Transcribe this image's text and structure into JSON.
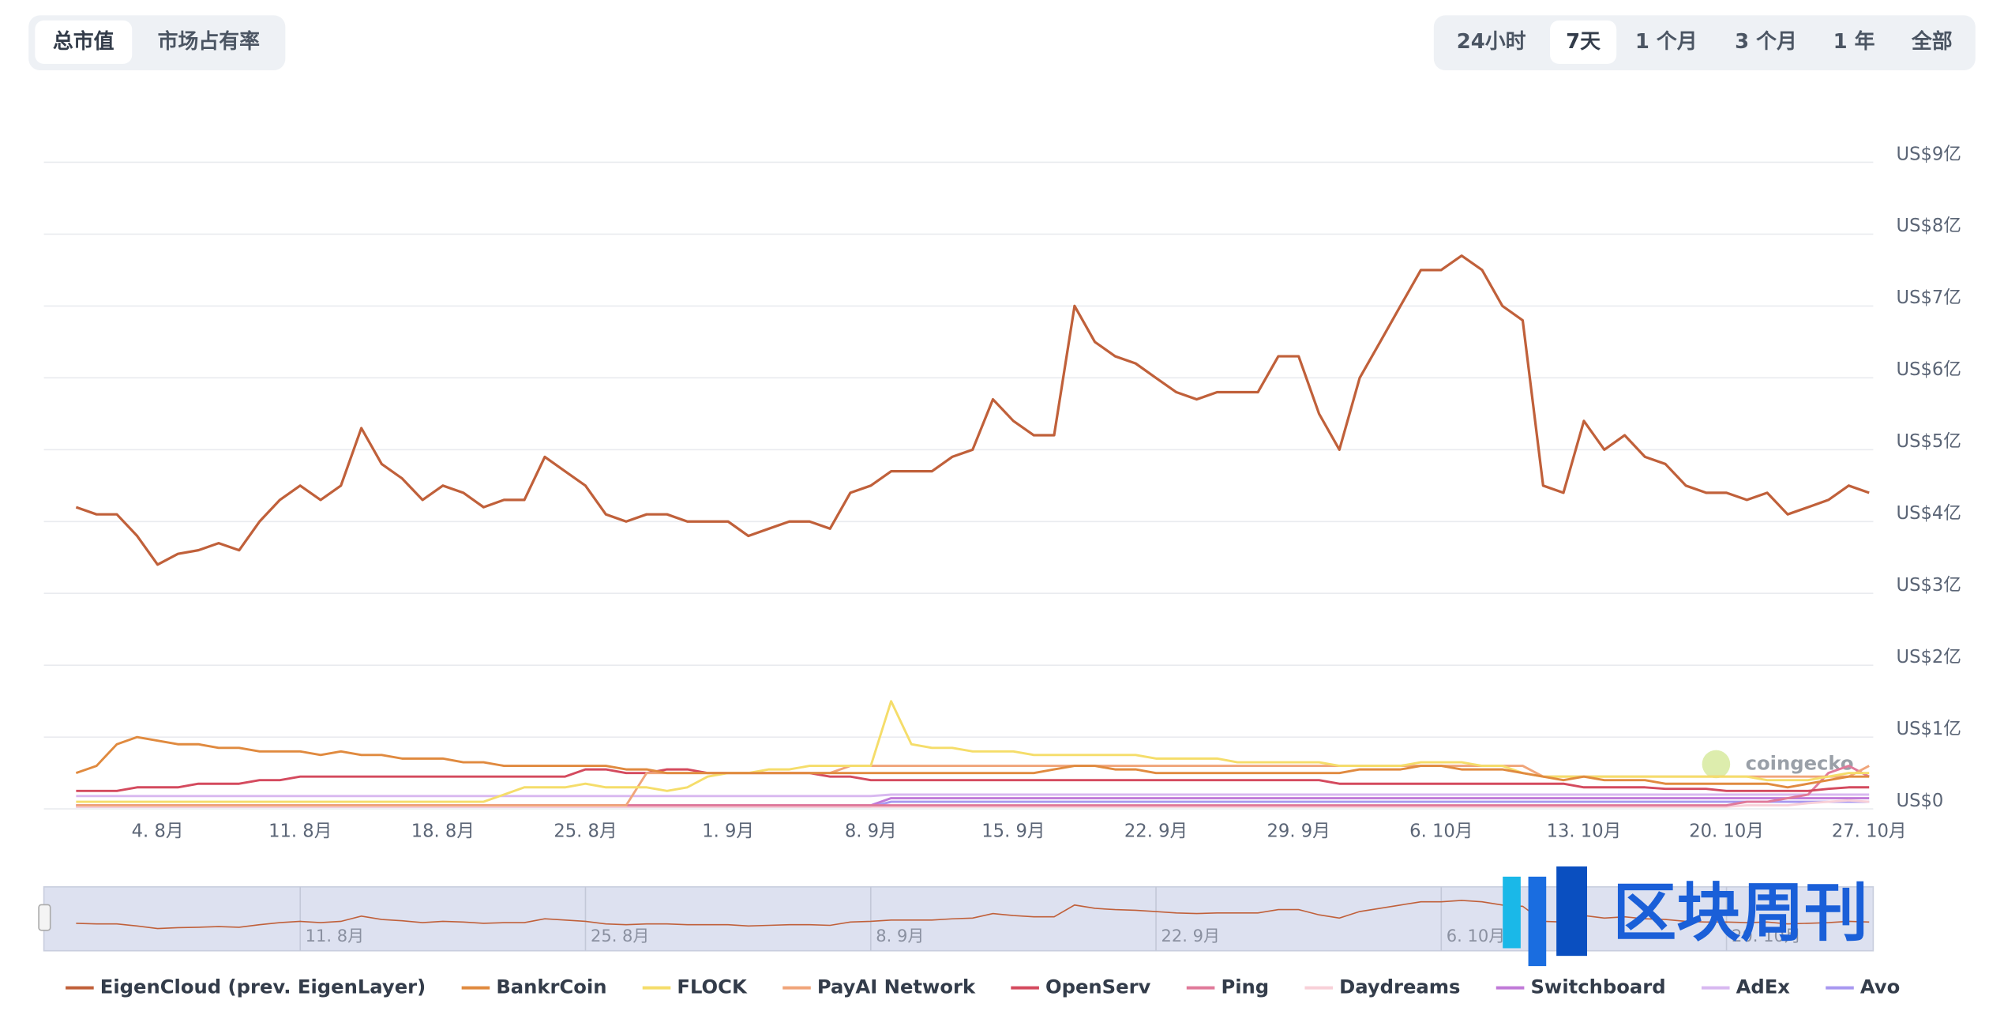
{
  "controls": {
    "metric_tabs": [
      "总市值",
      "市场占有率"
    ],
    "range_tabs": [
      "24小时",
      "7天",
      "1 个月",
      "3 个月",
      "1 年",
      "全部"
    ]
  },
  "watermarks": [
    "coingecko",
    "区块周刊"
  ],
  "chart_data": {
    "type": "line",
    "grid": true,
    "legend": "bottom",
    "categories": [
      null,
      null,
      null,
      null,
      "4. 8月",
      null,
      null,
      null,
      null,
      null,
      null,
      "11. 8月",
      null,
      null,
      null,
      null,
      null,
      null,
      "18. 8月",
      null,
      null,
      null,
      null,
      null,
      null,
      "25. 8月",
      null,
      null,
      null,
      null,
      null,
      null,
      "1. 9月",
      null,
      null,
      null,
      null,
      null,
      null,
      "8. 9月",
      null,
      null,
      null,
      null,
      null,
      null,
      "15. 9月",
      null,
      null,
      null,
      null,
      null,
      null,
      "22. 9月",
      null,
      null,
      null,
      null,
      null,
      null,
      "29. 9月",
      null,
      null,
      null,
      null,
      null,
      null,
      "6. 10月",
      null,
      null,
      null,
      null,
      null,
      null,
      "13. 10月",
      null,
      null,
      null,
      null,
      null,
      null,
      "20. 10月",
      null,
      null,
      null,
      null,
      null,
      null,
      "27. 10月"
    ],
    "ylim": [
      0,
      9
    ],
    "yticks": [
      {
        "value": 0,
        "label": "US$0"
      },
      {
        "value": 1,
        "label": "US$1亿"
      },
      {
        "value": 2,
        "label": "US$2亿"
      },
      {
        "value": 3,
        "label": "US$3亿"
      },
      {
        "value": 4,
        "label": "US$4亿"
      },
      {
        "value": 5,
        "label": "US$5亿"
      },
      {
        "value": 6,
        "label": "US$6亿"
      },
      {
        "value": 7,
        "label": "US$7亿"
      },
      {
        "value": 8,
        "label": "US$8亿"
      },
      {
        "value": 9,
        "label": "US$9亿"
      }
    ],
    "series": [
      {
        "name": "EigenCloud (prev. EigenLayer)",
        "color": "#c0603a",
        "values": [
          4.2,
          4.1,
          4.1,
          3.8,
          3.4,
          3.55,
          3.6,
          3.7,
          3.6,
          4.0,
          4.3,
          4.5,
          4.3,
          4.5,
          5.3,
          4.8,
          4.6,
          4.3,
          4.5,
          4.4,
          4.2,
          4.3,
          4.3,
          4.9,
          4.7,
          4.5,
          4.1,
          4.0,
          4.1,
          4.1,
          4.0,
          4.0,
          4.0,
          3.8,
          3.9,
          4.0,
          4.0,
          3.9,
          4.4,
          4.5,
          4.7,
          4.7,
          4.7,
          4.9,
          5.0,
          5.7,
          5.4,
          5.2,
          5.2,
          7.0,
          6.5,
          6.3,
          6.2,
          6.0,
          5.8,
          5.7,
          5.8,
          5.8,
          5.8,
          6.3,
          6.3,
          5.5,
          5.0,
          6.0,
          6.5,
          7.0,
          7.5,
          7.5,
          7.7,
          7.5,
          7.0,
          6.8,
          4.5,
          4.4,
          5.4,
          5.0,
          5.2,
          4.9,
          4.8,
          4.5,
          4.4,
          4.4,
          4.3,
          4.4,
          4.1,
          4.2,
          4.3,
          4.5,
          4.4
        ]
      },
      {
        "name": "BankrCoin",
        "color": "#e08a3f",
        "values": [
          0.5,
          0.6,
          0.9,
          1.0,
          0.95,
          0.9,
          0.9,
          0.85,
          0.85,
          0.8,
          0.8,
          0.8,
          0.75,
          0.8,
          0.75,
          0.75,
          0.7,
          0.7,
          0.7,
          0.65,
          0.65,
          0.6,
          0.6,
          0.6,
          0.6,
          0.6,
          0.6,
          0.55,
          0.55,
          0.5,
          0.5,
          0.5,
          0.5,
          0.5,
          0.5,
          0.5,
          0.5,
          0.5,
          0.5,
          0.5,
          0.5,
          0.5,
          0.5,
          0.5,
          0.5,
          0.5,
          0.5,
          0.5,
          0.55,
          0.6,
          0.6,
          0.55,
          0.55,
          0.5,
          0.5,
          0.5,
          0.5,
          0.5,
          0.5,
          0.5,
          0.5,
          0.5,
          0.5,
          0.55,
          0.55,
          0.55,
          0.6,
          0.6,
          0.55,
          0.55,
          0.55,
          0.5,
          0.45,
          0.4,
          0.45,
          0.4,
          0.4,
          0.4,
          0.35,
          0.35,
          0.35,
          0.35,
          0.35,
          0.35,
          0.3,
          0.35,
          0.4,
          0.45,
          0.45
        ]
      },
      {
        "name": "FLOCK",
        "color": "#f5dd6a",
        "values": [
          0.1,
          0.1,
          0.1,
          0.1,
          0.1,
          0.1,
          0.1,
          0.1,
          0.1,
          0.1,
          0.1,
          0.1,
          0.1,
          0.1,
          0.1,
          0.1,
          0.1,
          0.1,
          0.1,
          0.1,
          0.1,
          0.2,
          0.3,
          0.3,
          0.3,
          0.35,
          0.3,
          0.3,
          0.3,
          0.25,
          0.3,
          0.45,
          0.5,
          0.5,
          0.55,
          0.55,
          0.6,
          0.6,
          0.6,
          0.6,
          1.5,
          0.9,
          0.85,
          0.85,
          0.8,
          0.8,
          0.8,
          0.75,
          0.75,
          0.75,
          0.75,
          0.75,
          0.75,
          0.7,
          0.7,
          0.7,
          0.7,
          0.65,
          0.65,
          0.65,
          0.65,
          0.65,
          0.6,
          0.6,
          0.6,
          0.6,
          0.65,
          0.65,
          0.65,
          0.6,
          0.6,
          0.5,
          0.45,
          0.45,
          0.45,
          0.45,
          0.45,
          0.45,
          0.45,
          0.45,
          0.45,
          0.45,
          0.45,
          0.4,
          0.4,
          0.4,
          0.45,
          0.5,
          0.5
        ]
      },
      {
        "name": "PayAI Network",
        "color": "#f0a57a",
        "values": [
          0.05,
          0.05,
          0.05,
          0.05,
          0.05,
          0.05,
          0.05,
          0.05,
          0.05,
          0.05,
          0.05,
          0.05,
          0.05,
          0.05,
          0.05,
          0.05,
          0.05,
          0.05,
          0.05,
          0.05,
          0.05,
          0.05,
          0.05,
          0.05,
          0.05,
          0.05,
          0.05,
          0.05,
          0.5,
          0.5,
          0.5,
          0.5,
          0.5,
          0.5,
          0.5,
          0.5,
          0.5,
          0.5,
          0.6,
          0.6,
          0.6,
          0.6,
          0.6,
          0.6,
          0.6,
          0.6,
          0.6,
          0.6,
          0.6,
          0.6,
          0.6,
          0.6,
          0.6,
          0.6,
          0.6,
          0.6,
          0.6,
          0.6,
          0.6,
          0.6,
          0.6,
          0.6,
          0.6,
          0.6,
          0.6,
          0.6,
          0.6,
          0.6,
          0.6,
          0.6,
          0.6,
          0.6,
          0.45,
          0.45,
          0.45,
          0.45,
          0.45,
          0.45,
          0.45,
          0.45,
          0.45,
          0.45,
          0.45,
          0.45,
          0.45,
          0.45,
          0.45,
          0.45,
          0.6
        ]
      },
      {
        "name": "OpenServ",
        "color": "#d44a5e",
        "values": [
          0.25,
          0.25,
          0.25,
          0.3,
          0.3,
          0.3,
          0.35,
          0.35,
          0.35,
          0.4,
          0.4,
          0.45,
          0.45,
          0.45,
          0.45,
          0.45,
          0.45,
          0.45,
          0.45,
          0.45,
          0.45,
          0.45,
          0.45,
          0.45,
          0.45,
          0.55,
          0.55,
          0.5,
          0.5,
          0.55,
          0.55,
          0.5,
          0.5,
          0.5,
          0.5,
          0.5,
          0.5,
          0.45,
          0.45,
          0.4,
          0.4,
          0.4,
          0.4,
          0.4,
          0.4,
          0.4,
          0.4,
          0.4,
          0.4,
          0.4,
          0.4,
          0.4,
          0.4,
          0.4,
          0.4,
          0.4,
          0.4,
          0.4,
          0.4,
          0.4,
          0.4,
          0.4,
          0.35,
          0.35,
          0.35,
          0.35,
          0.35,
          0.35,
          0.35,
          0.35,
          0.35,
          0.35,
          0.35,
          0.35,
          0.3,
          0.3,
          0.3,
          0.3,
          0.28,
          0.28,
          0.28,
          0.25,
          0.25,
          0.25,
          0.25,
          0.25,
          0.28,
          0.3,
          0.3
        ]
      },
      {
        "name": "Ping",
        "color": "#e07a9a",
        "values": [
          0.05,
          0.05,
          0.05,
          0.05,
          0.05,
          0.05,
          0.05,
          0.05,
          0.05,
          0.05,
          0.05,
          0.05,
          0.05,
          0.05,
          0.05,
          0.05,
          0.05,
          0.05,
          0.05,
          0.05,
          0.05,
          0.05,
          0.05,
          0.05,
          0.05,
          0.05,
          0.05,
          0.05,
          0.05,
          0.05,
          0.05,
          0.05,
          0.05,
          0.05,
          0.05,
          0.05,
          0.05,
          0.05,
          0.05,
          0.05,
          0.05,
          0.05,
          0.05,
          0.05,
          0.05,
          0.05,
          0.05,
          0.05,
          0.05,
          0.05,
          0.05,
          0.05,
          0.05,
          0.05,
          0.05,
          0.05,
          0.05,
          0.05,
          0.05,
          0.05,
          0.05,
          0.05,
          0.05,
          0.05,
          0.05,
          0.05,
          0.05,
          0.05,
          0.05,
          0.05,
          0.05,
          0.05,
          0.05,
          0.05,
          0.05,
          0.05,
          0.05,
          0.05,
          0.05,
          0.05,
          0.05,
          0.05,
          0.1,
          0.1,
          0.15,
          0.2,
          0.5,
          0.6,
          0.45
        ]
      },
      {
        "name": "Daydreams",
        "color": "#f8d0d8",
        "values": [
          0.03,
          0.03,
          0.03,
          0.03,
          0.03,
          0.03,
          0.03,
          0.03,
          0.03,
          0.03,
          0.03,
          0.03,
          0.03,
          0.03,
          0.03,
          0.03,
          0.03,
          0.03,
          0.03,
          0.03,
          0.03,
          0.03,
          0.03,
          0.03,
          0.03,
          0.03,
          0.03,
          0.03,
          0.03,
          0.03,
          0.03,
          0.03,
          0.03,
          0.03,
          0.03,
          0.03,
          0.03,
          0.03,
          0.03,
          0.03,
          0.03,
          0.03,
          0.03,
          0.03,
          0.03,
          0.03,
          0.03,
          0.03,
          0.03,
          0.03,
          0.03,
          0.03,
          0.03,
          0.03,
          0.03,
          0.03,
          0.03,
          0.03,
          0.03,
          0.03,
          0.03,
          0.03,
          0.03,
          0.03,
          0.03,
          0.03,
          0.03,
          0.03,
          0.03,
          0.03,
          0.03,
          0.03,
          0.03,
          0.03,
          0.03,
          0.03,
          0.03,
          0.03,
          0.03,
          0.03,
          0.03,
          0.03,
          0.05,
          0.05,
          0.05,
          0.08,
          0.1,
          0.12,
          0.1
        ]
      },
      {
        "name": "Switchboard",
        "color": "#c07ad8",
        "values": [
          0.05,
          0.05,
          0.05,
          0.05,
          0.05,
          0.05,
          0.05,
          0.05,
          0.05,
          0.05,
          0.05,
          0.05,
          0.05,
          0.05,
          0.05,
          0.05,
          0.05,
          0.05,
          0.05,
          0.05,
          0.05,
          0.05,
          0.05,
          0.05,
          0.05,
          0.05,
          0.05,
          0.05,
          0.05,
          0.05,
          0.05,
          0.05,
          0.05,
          0.05,
          0.05,
          0.05,
          0.05,
          0.05,
          0.05,
          0.05,
          0.15,
          0.15,
          0.15,
          0.15,
          0.15,
          0.15,
          0.15,
          0.15,
          0.15,
          0.15,
          0.15,
          0.15,
          0.15,
          0.15,
          0.15,
          0.15,
          0.15,
          0.15,
          0.15,
          0.15,
          0.15,
          0.15,
          0.15,
          0.15,
          0.15,
          0.15,
          0.15,
          0.15,
          0.15,
          0.15,
          0.15,
          0.15,
          0.15,
          0.15,
          0.15,
          0.15,
          0.15,
          0.15,
          0.15,
          0.15,
          0.15,
          0.15,
          0.15,
          0.15,
          0.15,
          0.15,
          0.15,
          0.15,
          0.15
        ]
      },
      {
        "name": "AdEx",
        "color": "#d8b8f0",
        "values": [
          0.18,
          0.18,
          0.18,
          0.18,
          0.18,
          0.18,
          0.18,
          0.18,
          0.18,
          0.18,
          0.18,
          0.18,
          0.18,
          0.18,
          0.18,
          0.18,
          0.18,
          0.18,
          0.18,
          0.18,
          0.18,
          0.18,
          0.18,
          0.18,
          0.18,
          0.18,
          0.18,
          0.18,
          0.18,
          0.18,
          0.18,
          0.18,
          0.18,
          0.18,
          0.18,
          0.18,
          0.18,
          0.18,
          0.18,
          0.18,
          0.2,
          0.2,
          0.2,
          0.2,
          0.2,
          0.2,
          0.2,
          0.2,
          0.2,
          0.2,
          0.2,
          0.2,
          0.2,
          0.2,
          0.2,
          0.2,
          0.2,
          0.2,
          0.2,
          0.2,
          0.2,
          0.2,
          0.2,
          0.2,
          0.2,
          0.2,
          0.2,
          0.2,
          0.2,
          0.2,
          0.2,
          0.2,
          0.2,
          0.2,
          0.2,
          0.2,
          0.2,
          0.2,
          0.2,
          0.2,
          0.2,
          0.2,
          0.2,
          0.2,
          0.2,
          0.2,
          0.2,
          0.2,
          0.2
        ]
      },
      {
        "name": "Avo",
        "color": "#a898f0",
        "values": [
          0.03,
          0.03,
          0.03,
          0.03,
          0.03,
          0.03,
          0.03,
          0.03,
          0.03,
          0.03,
          0.03,
          0.03,
          0.03,
          0.03,
          0.03,
          0.03,
          0.03,
          0.03,
          0.03,
          0.03,
          0.03,
          0.03,
          0.03,
          0.03,
          0.03,
          0.03,
          0.03,
          0.03,
          0.03,
          0.03,
          0.03,
          0.03,
          0.03,
          0.03,
          0.03,
          0.03,
          0.03,
          0.03,
          0.03,
          0.03,
          0.1,
          0.1,
          0.1,
          0.1,
          0.1,
          0.1,
          0.1,
          0.1,
          0.1,
          0.1,
          0.1,
          0.1,
          0.1,
          0.1,
          0.1,
          0.1,
          0.1,
          0.1,
          0.1,
          0.1,
          0.1,
          0.1,
          0.1,
          0.1,
          0.1,
          0.1,
          0.1,
          0.1,
          0.1,
          0.1,
          0.1,
          0.1,
          0.1,
          0.1,
          0.1,
          0.1,
          0.1,
          0.1,
          0.1,
          0.1,
          0.1,
          0.1,
          0.1,
          0.1,
          0.1,
          0.1,
          0.1,
          0.1,
          0.1
        ]
      }
    ]
  }
}
